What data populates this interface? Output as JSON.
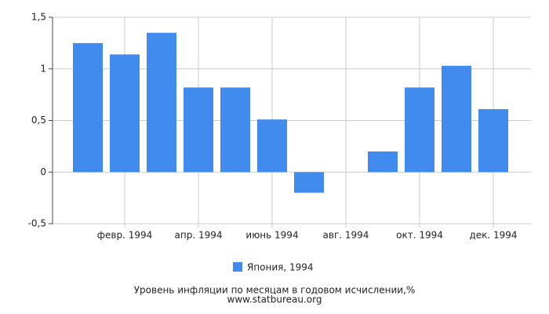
{
  "chart_data": {
    "type": "bar",
    "title": "Уровень инфляции по месяцам в годовом исчислении,%",
    "source": "www.statbureau.org",
    "categories": [
      null,
      "февр. 1994",
      null,
      "апр. 1994",
      null,
      "июнь 1994",
      null,
      "авг. 1994",
      null,
      "окт. 1994",
      null,
      "дек. 1994"
    ],
    "series": [
      {
        "name": "Япония, 1994",
        "color": "#428bee",
        "values": [
          1.25,
          1.14,
          1.35,
          0.82,
          0.82,
          0.51,
          -0.2,
          0,
          0.2,
          0.82,
          1.03,
          0.61
        ]
      }
    ],
    "ylim": [
      -0.5,
      1.5
    ],
    "yticks": [
      {
        "value": -0.5,
        "label": "-0,5"
      },
      0,
      {
        "value": 0.5,
        "label": "0,5"
      },
      1,
      {
        "value": 1.5,
        "label": "1,5"
      }
    ],
    "grid": true
  }
}
